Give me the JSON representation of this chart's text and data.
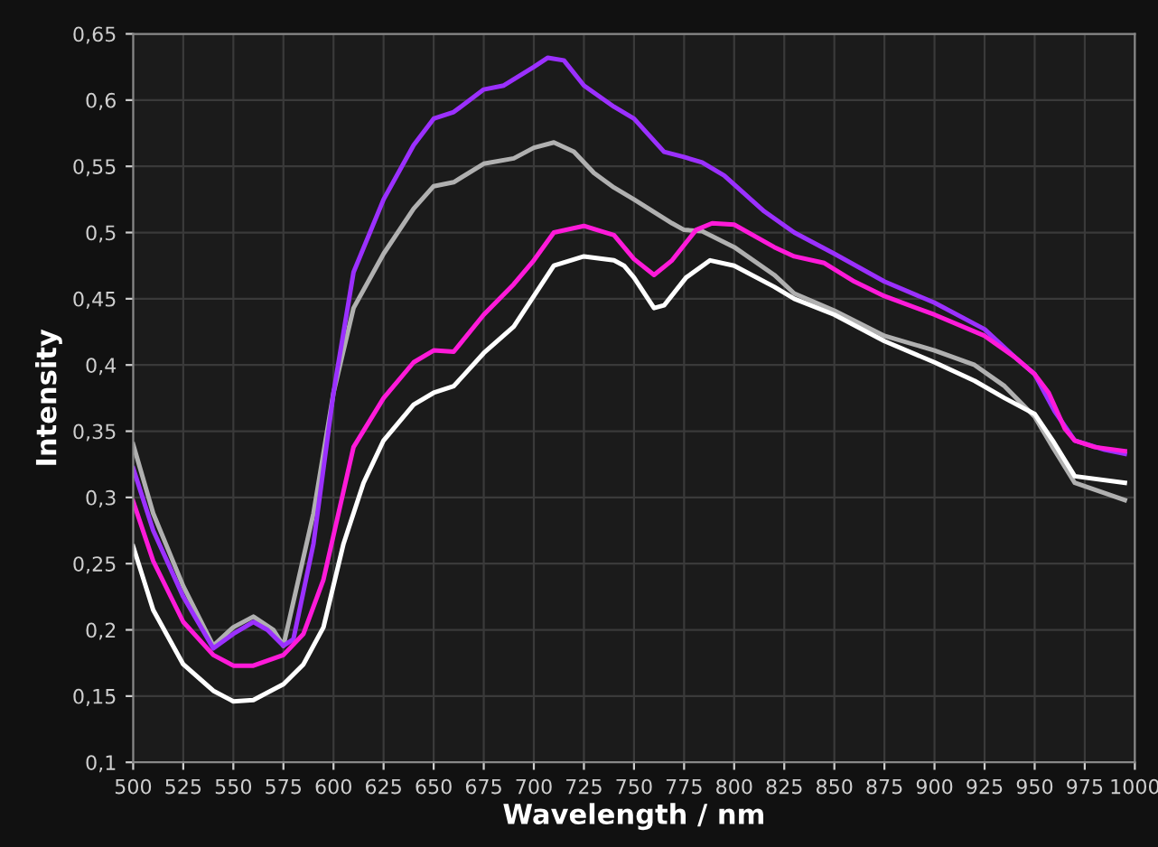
{
  "chart_data": {
    "type": "line",
    "xlabel": "Wavelength / nm",
    "ylabel": "Intensity",
    "xlim": [
      500,
      1000
    ],
    "xticks": [
      500,
      525,
      550,
      575,
      600,
      625,
      650,
      675,
      700,
      725,
      750,
      775,
      800,
      825,
      850,
      875,
      900,
      925,
      950,
      975,
      1000
    ],
    "ylim": [
      0.1,
      0.65
    ],
    "yticks": [
      {
        "value": 0.1,
        "label": "0,1"
      },
      {
        "value": 0.15,
        "label": "0,15"
      },
      {
        "value": 0.2,
        "label": "0,2"
      },
      {
        "value": 0.25,
        "label": "0,25"
      },
      {
        "value": 0.3,
        "label": "0,3"
      },
      {
        "value": 0.35,
        "label": "0,35"
      },
      {
        "value": 0.4,
        "label": "0,4"
      },
      {
        "value": 0.45,
        "label": "0,45"
      },
      {
        "value": 0.5,
        "label": "0,5"
      },
      {
        "value": 0.55,
        "label": "0,55"
      },
      {
        "value": 0.6,
        "label": "0,6"
      },
      {
        "value": 0.65,
        "label": "0,65"
      }
    ],
    "grid": true,
    "legend": false,
    "marker": "none",
    "line_style": "solid",
    "series": [
      {
        "color": "#b0b0b0",
        "x": [
          500,
          510,
          525,
          540,
          550,
          560,
          570,
          575,
          590,
          600,
          610,
          625,
          640,
          650,
          660,
          675,
          690,
          700,
          710,
          720,
          730,
          740,
          750,
          769,
          775,
          784,
          800,
          820,
          830,
          850,
          875,
          900,
          920,
          935,
          950,
          959,
          970,
          995
        ],
        "values": [
          0.34,
          0.288,
          0.233,
          0.188,
          0.202,
          0.21,
          0.2,
          0.188,
          0.288,
          0.379,
          0.443,
          0.484,
          0.518,
          0.535,
          0.538,
          0.552,
          0.556,
          0.564,
          0.568,
          0.561,
          0.545,
          0.534,
          0.525,
          0.507,
          0.502,
          0.501,
          0.489,
          0.468,
          0.454,
          0.441,
          0.422,
          0.411,
          0.4,
          0.384,
          0.361,
          0.338,
          0.311,
          0.298
        ]
      },
      {
        "color": "#9b30ff",
        "x": [
          500,
          510,
          525,
          540,
          550,
          560,
          567,
          575,
          580,
          590,
          600,
          610,
          625,
          640,
          650,
          660,
          675,
          685,
          700,
          707,
          715,
          725,
          740,
          750,
          765,
          775,
          784,
          795,
          815,
          830,
          850,
          875,
          900,
          925,
          940,
          950,
          960,
          970,
          985,
          995
        ],
        "values": [
          0.322,
          0.275,
          0.225,
          0.186,
          0.197,
          0.206,
          0.2,
          0.188,
          0.193,
          0.265,
          0.379,
          0.47,
          0.525,
          0.566,
          0.586,
          0.591,
          0.608,
          0.611,
          0.625,
          0.632,
          0.63,
          0.611,
          0.595,
          0.586,
          0.561,
          0.557,
          0.553,
          0.543,
          0.516,
          0.5,
          0.484,
          0.463,
          0.447,
          0.427,
          0.406,
          0.393,
          0.365,
          0.343,
          0.336,
          0.333
        ]
      },
      {
        "color": "#ff1ad9",
        "x": [
          500,
          510,
          525,
          540,
          550,
          560,
          575,
          585,
          595,
          610,
          625,
          640,
          650,
          660,
          675,
          690,
          700,
          710,
          725,
          740,
          750,
          760,
          769,
          781,
          789,
          800,
          820,
          830,
          845,
          860,
          875,
          900,
          925,
          940,
          950,
          957,
          965,
          970,
          980,
          995
        ],
        "values": [
          0.297,
          0.252,
          0.206,
          0.181,
          0.173,
          0.173,
          0.181,
          0.197,
          0.238,
          0.338,
          0.375,
          0.402,
          0.411,
          0.41,
          0.438,
          0.461,
          0.479,
          0.5,
          0.505,
          0.498,
          0.48,
          0.468,
          0.479,
          0.502,
          0.507,
          0.506,
          0.489,
          0.482,
          0.477,
          0.463,
          0.452,
          0.438,
          0.422,
          0.406,
          0.393,
          0.379,
          0.352,
          0.343,
          0.338,
          0.335
        ]
      },
      {
        "color": "#ffffff",
        "x": [
          500,
          510,
          525,
          540,
          550,
          560,
          575,
          585,
          595,
          605,
          615,
          625,
          640,
          650,
          660,
          675,
          690,
          700,
          710,
          725,
          740,
          745,
          750,
          760,
          765,
          776,
          788,
          800,
          820,
          830,
          850,
          875,
          900,
          920,
          935,
          950,
          959,
          970,
          995
        ],
        "values": [
          0.263,
          0.215,
          0.174,
          0.154,
          0.146,
          0.147,
          0.159,
          0.174,
          0.202,
          0.265,
          0.311,
          0.343,
          0.37,
          0.379,
          0.384,
          0.409,
          0.429,
          0.452,
          0.475,
          0.482,
          0.479,
          0.475,
          0.466,
          0.443,
          0.445,
          0.466,
          0.479,
          0.475,
          0.459,
          0.45,
          0.438,
          0.418,
          0.402,
          0.388,
          0.375,
          0.363,
          0.343,
          0.316,
          0.311
        ]
      }
    ]
  }
}
